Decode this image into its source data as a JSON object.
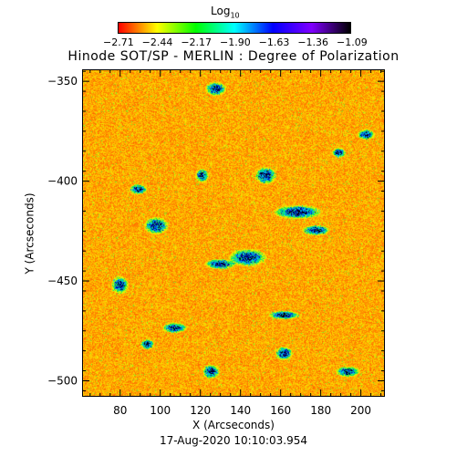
{
  "colorbar": {
    "label_main": "Log",
    "label_sub": "10",
    "ticks": [
      "−2.71",
      "−2.44",
      "−2.17",
      "−1.90",
      "−1.63",
      "−1.36",
      "−1.09"
    ],
    "colors": [
      "#ff0000",
      "#ffff00",
      "#00ff00",
      "#00ffff",
      "#0000ff",
      "#8000ff",
      "#000000"
    ]
  },
  "chart_data": {
    "type": "heatmap",
    "title": "Hinode SOT/SP - MERLIN : Degree of Polarization",
    "xlabel": "X (Arcseconds)",
    "ylabel": "Y (Arcseconds)",
    "xlim": [
      61,
      212
    ],
    "ylim": [
      -508,
      -344
    ],
    "xticks": [
      80,
      100,
      120,
      140,
      160,
      180,
      200
    ],
    "yticks": [
      -350,
      -400,
      -450,
      -500
    ],
    "value_range_log10": [
      -2.71,
      -1.09
    ],
    "annotation": "17-Aug-2020 10:10:03.954"
  }
}
